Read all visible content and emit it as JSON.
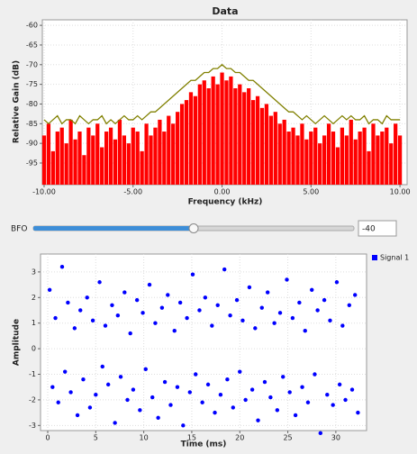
{
  "chart_data": [
    {
      "type": "line",
      "title": "Data",
      "x_label": "Frequency (kHz)",
      "y_label": "Relative Gain (dB)",
      "x": [
        -10,
        -9.75,
        -9.5,
        -9.25,
        -9,
        -8.75,
        -8.5,
        -8.25,
        -8,
        -7.75,
        -7.5,
        -7.25,
        -7,
        -6.75,
        -6.5,
        -6.25,
        -6,
        -5.75,
        -5.5,
        -5.25,
        -5,
        -4.75,
        -4.5,
        -4.25,
        -4,
        -3.75,
        -3.5,
        -3.25,
        -3,
        -2.75,
        -2.5,
        -2.25,
        -2,
        -1.75,
        -1.5,
        -1.25,
        -1,
        -0.75,
        -0.5,
        -0.25,
        0,
        0.25,
        0.5,
        0.75,
        1,
        1.25,
        1.5,
        1.75,
        2,
        2.25,
        2.5,
        2.75,
        3,
        3.25,
        3.5,
        3.75,
        4,
        4.25,
        4.5,
        4.75,
        5,
        5.25,
        5.5,
        5.75,
        6,
        6.25,
        6.5,
        6.75,
        7,
        7.25,
        7.5,
        7.75,
        8,
        8.25,
        8.5,
        8.75,
        9,
        9.25,
        9.5,
        9.75,
        10
      ],
      "series": [
        {
          "type": "bar",
          "color": "#ff0000",
          "values": [
            -88,
            -85,
            -92,
            -87,
            -86,
            -90,
            -84,
            -89,
            -87,
            -93,
            -86,
            -88,
            -85,
            -91,
            -87,
            -86,
            -89,
            -84,
            -88,
            -90,
            -86,
            -87,
            -92,
            -85,
            -88,
            -86,
            -84,
            -87,
            -83,
            -85,
            -82,
            -80,
            -79,
            -77,
            -78,
            -75,
            -74,
            -76,
            -73,
            -75,
            -72,
            -74,
            -73,
            -76,
            -75,
            -77,
            -76,
            -79,
            -78,
            -81,
            -80,
            -83,
            -82,
            -85,
            -84,
            -87,
            -86,
            -88,
            -85,
            -89,
            -87,
            -86,
            -90,
            -88,
            -85,
            -87,
            -91,
            -86,
            -88,
            -84,
            -89,
            -87,
            -86,
            -92,
            -85,
            -88,
            -87,
            -86,
            -90,
            -85,
            -88
          ]
        },
        {
          "type": "line",
          "color": "#808000",
          "values": [
            -84,
            -85,
            -84,
            -83,
            -85,
            -84,
            -84,
            -85,
            -83,
            -84,
            -85,
            -84,
            -84,
            -83,
            -85,
            -84,
            -85,
            -84,
            -83,
            -84,
            -84,
            -83,
            -84,
            -83,
            -82,
            -82,
            -81,
            -80,
            -79,
            -78,
            -77,
            -76,
            -75,
            -74,
            -74,
            -73,
            -72,
            -72,
            -71,
            -71,
            -70,
            -71,
            -71,
            -72,
            -72,
            -73,
            -74,
            -74,
            -75,
            -76,
            -77,
            -78,
            -79,
            -80,
            -81,
            -82,
            -82,
            -83,
            -84,
            -83,
            -84,
            -85,
            -84,
            -83,
            -84,
            -85,
            -84,
            -83,
            -84,
            -83,
            -84,
            -84,
            -83,
            -85,
            -84,
            -84,
            -85,
            -83,
            -84,
            -84,
            -84
          ]
        }
      ],
      "xlim": [
        -10.1,
        10.4
      ],
      "ylim": [
        -100.5,
        -58.6
      ],
      "xticks": [
        {
          "value": -10,
          "label": "-10.00"
        },
        {
          "value": -5,
          "label": "-5.00"
        },
        {
          "value": 0,
          "label": "0.00"
        },
        {
          "value": 5,
          "label": "5.00"
        },
        {
          "value": 10,
          "label": "10.00"
        }
      ],
      "yticks": [
        -60,
        -65,
        -70,
        -75,
        -80,
        -85,
        -90,
        -95
      ],
      "grid": true
    },
    {
      "type": "scatter",
      "x_label": "Time (ms)",
      "y_label": "Amplitude",
      "legend": "right",
      "x": [
        0.2,
        0.5,
        0.8,
        1.1,
        1.5,
        1.8,
        2.1,
        2.4,
        2.8,
        3.1,
        3.4,
        3.7,
        4.1,
        4.4,
        4.7,
        5.0,
        5.4,
        5.7,
        6.0,
        6.3,
        6.7,
        7.0,
        7.3,
        7.6,
        8.0,
        8.3,
        8.6,
        8.9,
        9.3,
        9.6,
        9.9,
        10.2,
        10.6,
        10.9,
        11.2,
        11.5,
        11.9,
        12.2,
        12.5,
        12.8,
        13.2,
        13.5,
        13.8,
        14.1,
        14.5,
        14.8,
        15.1,
        15.4,
        15.8,
        16.1,
        16.4,
        16.7,
        17.1,
        17.4,
        17.7,
        18.0,
        18.4,
        18.7,
        19.0,
        19.3,
        19.7,
        20.0,
        20.3,
        20.6,
        21.0,
        21.3,
        21.6,
        21.9,
        22.3,
        22.6,
        22.9,
        23.2,
        23.6,
        23.9,
        24.2,
        24.5,
        24.9,
        25.2,
        25.5,
        25.8,
        26.2,
        26.5,
        26.8,
        27.1,
        27.5,
        27.8,
        28.1,
        28.4,
        28.8,
        29.1,
        29.4,
        29.7,
        30.1,
        30.4,
        30.7,
        31.0,
        31.4,
        31.7,
        32.0,
        32.3
      ],
      "series": [
        {
          "name": "Signal 1",
          "color": "#0000ff",
          "values": [
            2.3,
            -1.5,
            1.2,
            -2.1,
            3.2,
            -0.9,
            1.8,
            -1.7,
            0.8,
            -2.6,
            1.5,
            -1.2,
            2.0,
            -2.3,
            1.1,
            -1.8,
            2.6,
            -0.7,
            0.9,
            -1.4,
            1.7,
            -2.9,
            1.3,
            -1.1,
            2.2,
            -2.0,
            0.6,
            -1.6,
            1.9,
            -2.4,
            1.4,
            -0.8,
            2.5,
            -1.9,
            1.0,
            -2.7,
            1.6,
            -1.3,
            2.1,
            -2.2,
            0.7,
            -1.5,
            1.8,
            -3.0,
            1.2,
            -1.7,
            2.9,
            -1.0,
            1.5,
            -2.1,
            2.0,
            -1.4,
            0.9,
            -2.5,
            1.7,
            -1.8,
            3.1,
            -1.2,
            1.3,
            -2.3,
            1.9,
            -0.9,
            1.1,
            -2.0,
            2.4,
            -1.6,
            0.8,
            -2.8,
            1.6,
            -1.3,
            2.2,
            -1.9,
            1.0,
            -2.4,
            1.4,
            -1.1,
            2.7,
            -1.7,
            1.2,
            -2.6,
            1.8,
            -1.5,
            0.7,
            -2.1,
            2.3,
            -1.0,
            1.5,
            -3.3,
            1.9,
            -1.8,
            1.1,
            -2.2,
            2.6,
            -1.4,
            0.9,
            -2.0,
            1.7,
            -1.6,
            2.1,
            -2.5
          ]
        }
      ],
      "xlim": [
        -0.75,
        33.2
      ],
      "ylim": [
        -3.2,
        3.7
      ],
      "xticks": [
        0,
        5,
        10,
        15,
        20,
        25,
        30
      ],
      "yticks": [
        -3,
        -2,
        -1,
        0,
        1,
        2,
        3
      ],
      "grid": true
    }
  ],
  "bfo": {
    "label": "BFO",
    "value": -40
  }
}
